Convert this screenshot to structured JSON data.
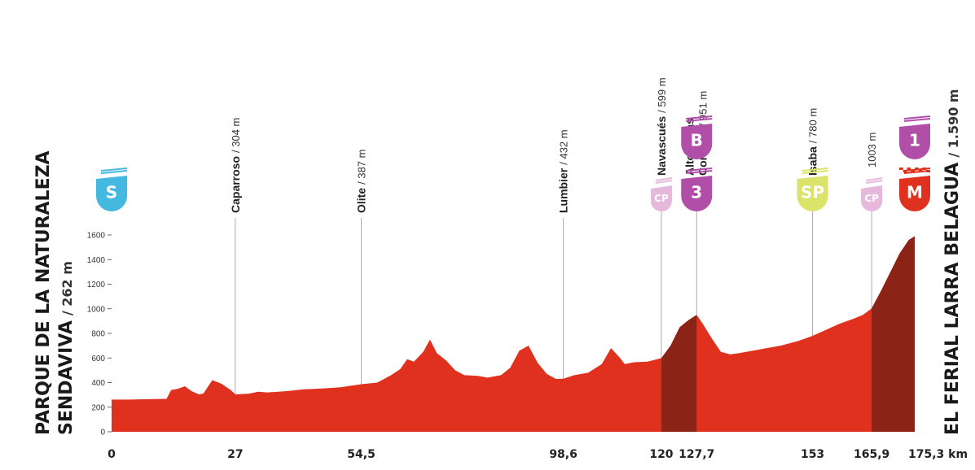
{
  "colors": {
    "profile": "#e0301e",
    "climb": "#8b2316",
    "start_badge": "#45b8e0",
    "climb_badge": "#b14fa8",
    "cp_badge": "#e6b8dc",
    "sprint_badge": "#dbe36b",
    "finish_badge": "#e0301e",
    "guide_line": "#999999"
  },
  "start": {
    "name_line1": "PARQUE DE LA NATURALEZA",
    "name_line2": "SENDAVIVA",
    "altitude": "/ 262 m"
  },
  "finish": {
    "name": "EL FERIAL LARRA BELAGUA",
    "altitude": "/ 1.590 m"
  },
  "waypoints": [
    {
      "name": "Caparroso",
      "altitude": "/ 304 m",
      "km": 27
    },
    {
      "name": "Olite",
      "altitude": "/ 387 m",
      "km": 54.5
    },
    {
      "name": "Lumbier",
      "altitude": "/ 432 m",
      "km": 98.6
    },
    {
      "name": "Navascués",
      "altitude": "/ 599 m",
      "km": 120
    },
    {
      "name": "Alto de las",
      "name2": "Coronas",
      "altitude": "/ 951 m",
      "km": 127.7
    },
    {
      "name": "Isaba",
      "altitude": "/ 780 m",
      "km": 153
    },
    {
      "name": "",
      "altitude": "1003 m",
      "km": 165.9
    }
  ],
  "badges": [
    {
      "label": "S",
      "km": 0,
      "kind": "start_badge",
      "level": "low"
    },
    {
      "label": "CP",
      "km": 120,
      "kind": "cp_badge",
      "level": "low"
    },
    {
      "label": "3",
      "km": 127.7,
      "kind": "climb_badge",
      "level": "low"
    },
    {
      "label": "B",
      "km": 127.7,
      "kind": "climb_badge",
      "level": "high"
    },
    {
      "label": "SP",
      "km": 153,
      "kind": "sprint_badge",
      "level": "low"
    },
    {
      "label": "CP",
      "km": 165.9,
      "kind": "cp_badge",
      "level": "low"
    },
    {
      "label": "M",
      "km": 175.3,
      "kind": "finish_badge",
      "level": "low"
    },
    {
      "label": "1",
      "km": 175.3,
      "kind": "climb_badge",
      "level": "high"
    }
  ],
  "chart_data": {
    "type": "area",
    "xlabel": "",
    "ylabel": "",
    "x_unit": "km",
    "xlim": [
      0,
      175.3
    ],
    "ylim": [
      0,
      1700
    ],
    "y_ticks": [
      0,
      200,
      400,
      600,
      800,
      1000,
      1200,
      1400,
      1600
    ],
    "x_ticks": [
      {
        "value": 0,
        "label": "0"
      },
      {
        "value": 27,
        "label": "27"
      },
      {
        "value": 54.5,
        "label": "54,5"
      },
      {
        "value": 98.6,
        "label": "98,6"
      },
      {
        "value": 120,
        "label": "120"
      },
      {
        "value": 127.7,
        "label": "127,7"
      },
      {
        "value": 153,
        "label": "153"
      },
      {
        "value": 165.9,
        "label": "165,9"
      },
      {
        "value": 175.3,
        "label": "175,3 km"
      }
    ],
    "climbs": [
      {
        "from_km": 120,
        "to_km": 127.7
      },
      {
        "from_km": 165.9,
        "to_km": 175.3
      }
    ],
    "profile": [
      [
        0,
        262
      ],
      [
        4,
        262
      ],
      [
        8,
        265
      ],
      [
        12,
        268
      ],
      [
        13,
        340
      ],
      [
        14.5,
        350
      ],
      [
        16,
        370
      ],
      [
        17.5,
        330
      ],
      [
        19,
        305
      ],
      [
        20,
        310
      ],
      [
        22,
        420
      ],
      [
        24,
        390
      ],
      [
        26,
        340
      ],
      [
        27,
        304
      ],
      [
        30,
        310
      ],
      [
        32,
        325
      ],
      [
        34,
        320
      ],
      [
        38,
        330
      ],
      [
        42,
        345
      ],
      [
        46,
        352
      ],
      [
        50,
        362
      ],
      [
        54.5,
        387
      ],
      [
        58,
        400
      ],
      [
        61,
        460
      ],
      [
        63,
        510
      ],
      [
        64.5,
        590
      ],
      [
        66,
        570
      ],
      [
        68,
        650
      ],
      [
        69.5,
        750
      ],
      [
        71,
        640
      ],
      [
        73,
        580
      ],
      [
        75,
        500
      ],
      [
        77,
        460
      ],
      [
        80,
        455
      ],
      [
        82,
        440
      ],
      [
        85,
        460
      ],
      [
        87,
        520
      ],
      [
        89,
        660
      ],
      [
        91,
        700
      ],
      [
        93,
        560
      ],
      [
        95,
        470
      ],
      [
        97,
        430
      ],
      [
        98.6,
        432
      ],
      [
        101,
        460
      ],
      [
        104,
        480
      ],
      [
        107,
        550
      ],
      [
        109,
        680
      ],
      [
        111,
        600
      ],
      [
        112,
        550
      ],
      [
        114,
        565
      ],
      [
        117,
        570
      ],
      [
        120,
        599
      ],
      [
        122,
        700
      ],
      [
        124,
        850
      ],
      [
        126,
        910
      ],
      [
        127.7,
        951
      ],
      [
        129,
        880
      ],
      [
        131,
        760
      ],
      [
        133,
        650
      ],
      [
        135,
        630
      ],
      [
        137,
        640
      ],
      [
        140,
        660
      ],
      [
        143,
        680
      ],
      [
        146,
        700
      ],
      [
        150,
        740
      ],
      [
        153,
        780
      ],
      [
        156,
        830
      ],
      [
        159,
        880
      ],
      [
        162,
        920
      ],
      [
        164,
        950
      ],
      [
        165.9,
        1003
      ],
      [
        168,
        1150
      ],
      [
        170,
        1300
      ],
      [
        172,
        1450
      ],
      [
        174,
        1560
      ],
      [
        175.3,
        1590
      ]
    ]
  }
}
